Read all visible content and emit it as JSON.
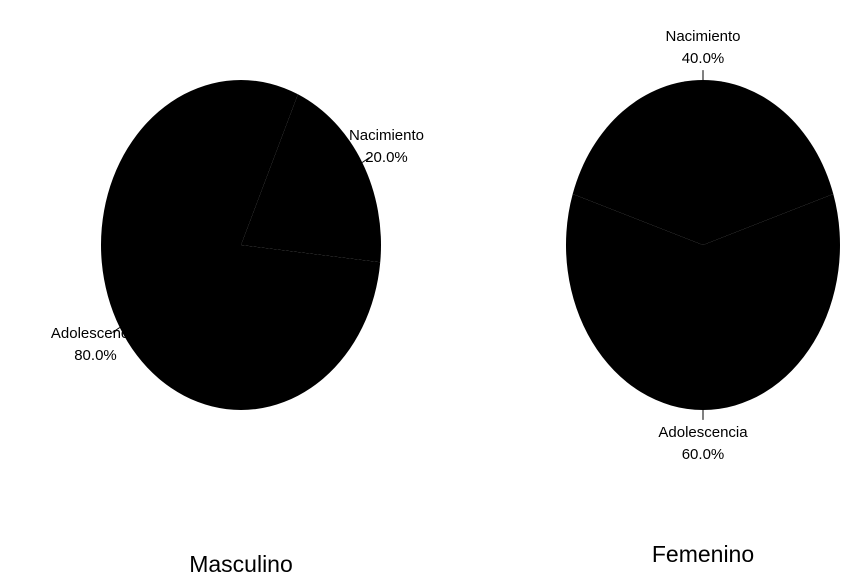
{
  "chart_data": [
    {
      "type": "pie",
      "title": "Masculino",
      "categories": [
        "Nacimiento",
        "Adolescencia"
      ],
      "values": [
        20,
        80
      ],
      "value_labels": [
        "20.0%",
        "80.0%"
      ],
      "color": "#000000"
    },
    {
      "type": "pie",
      "title": "Femenino",
      "categories": [
        "Nacimiento",
        "Adolescencia"
      ],
      "values": [
        40,
        60
      ],
      "value_labels": [
        "40.0%",
        "60.0%"
      ],
      "color": "#000000"
    }
  ]
}
